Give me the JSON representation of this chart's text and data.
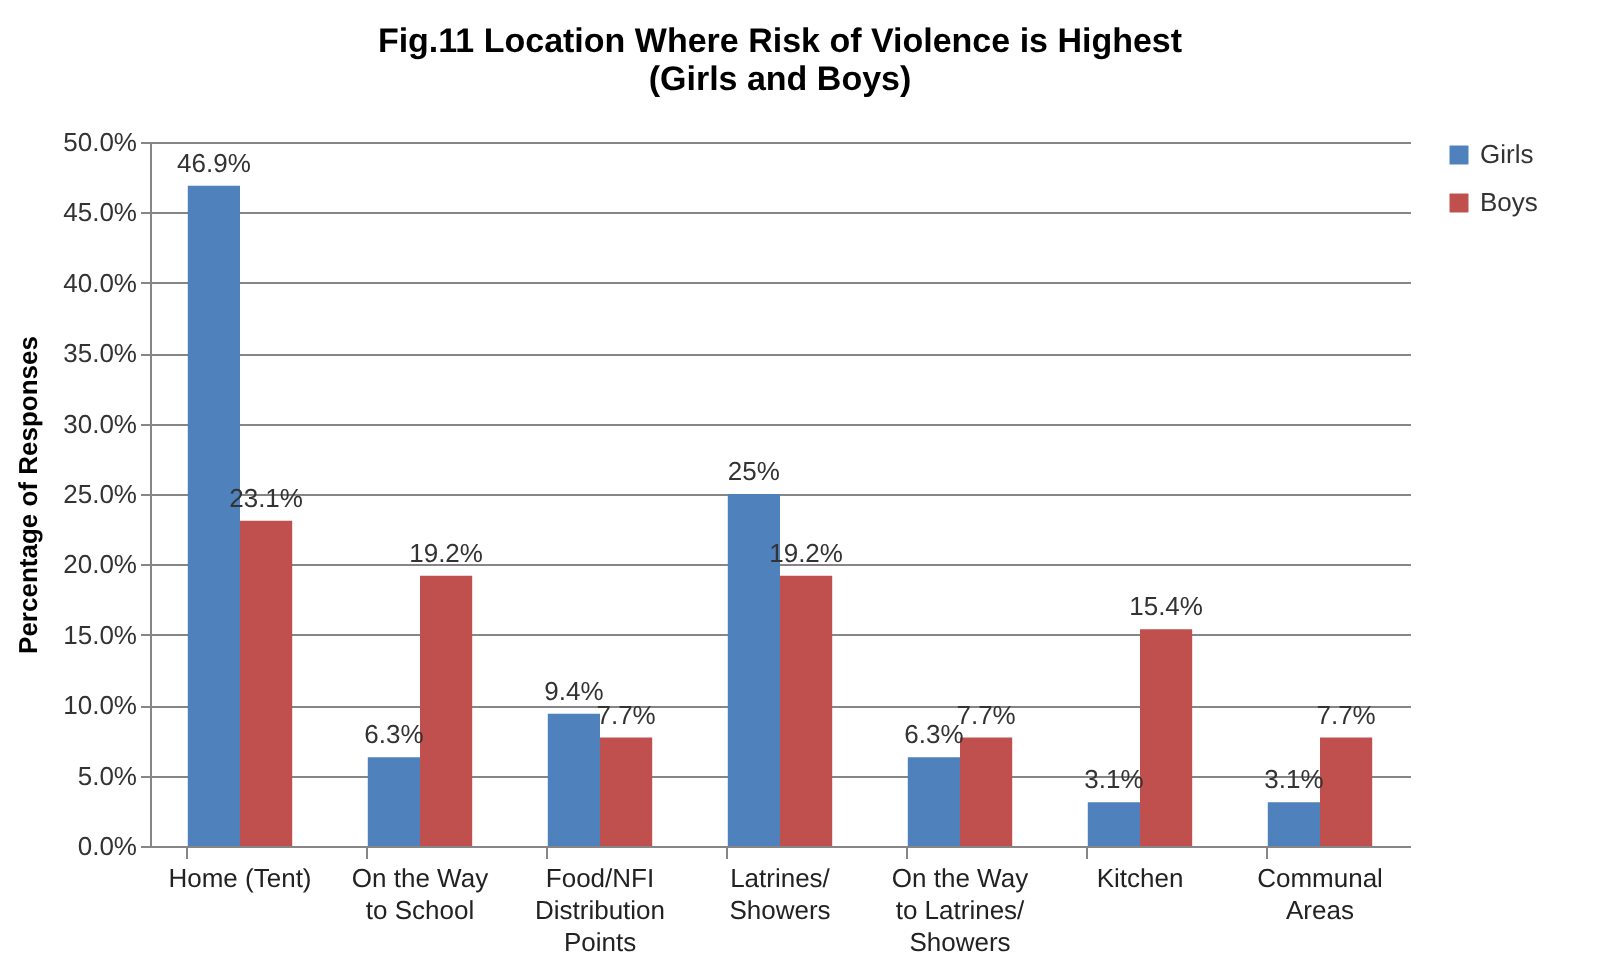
{
  "chart_data": {
    "type": "bar",
    "title": "Fig.11  Location Where Risk of Violence is Highest\n(Girls and Boys)",
    "ylabel": "Percentage of Responses",
    "categories": [
      "Home (Tent)",
      "On the Way to School",
      "Food/NFI Distribution Points",
      "Latrines/ Showers",
      "On the Way to Latrines/ Showers",
      "Kitchen",
      "Communal Areas"
    ],
    "series": [
      {
        "name": "Girls",
        "color": "#4f81bd",
        "values": [
          46.9,
          6.3,
          9.4,
          25,
          6.3,
          3.1,
          3.1
        ],
        "value_labels": [
          "46.9%",
          "6.3%",
          "9.4%",
          "25%",
          "6.3%",
          "3.1%",
          "3.1%"
        ]
      },
      {
        "name": "Boys",
        "color": "#c0504d",
        "values": [
          23.1,
          19.2,
          7.7,
          19.2,
          7.7,
          15.4,
          7.7
        ],
        "value_labels": [
          "23.1%",
          "19.2%",
          "7.7%",
          "19.2%",
          "7.7%",
          "15.4%",
          "7.7%"
        ]
      }
    ],
    "ylim": [
      0,
      50
    ],
    "yticks": [
      {
        "value": 0,
        "label": "0.0%"
      },
      {
        "value": 5,
        "label": "5.0%"
      },
      {
        "value": 10,
        "label": "10.0%"
      },
      {
        "value": 15,
        "label": "15.0%"
      },
      {
        "value": 20,
        "label": "20.0%"
      },
      {
        "value": 25,
        "label": "25.0%"
      },
      {
        "value": 30,
        "label": "30.0%"
      },
      {
        "value": 35,
        "label": "35.0%"
      },
      {
        "value": 40,
        "label": "40.0%"
      },
      {
        "value": 45,
        "label": "45.0%"
      },
      {
        "value": 50,
        "label": "50.0%"
      }
    ],
    "grid": "y",
    "legend": "right"
  }
}
